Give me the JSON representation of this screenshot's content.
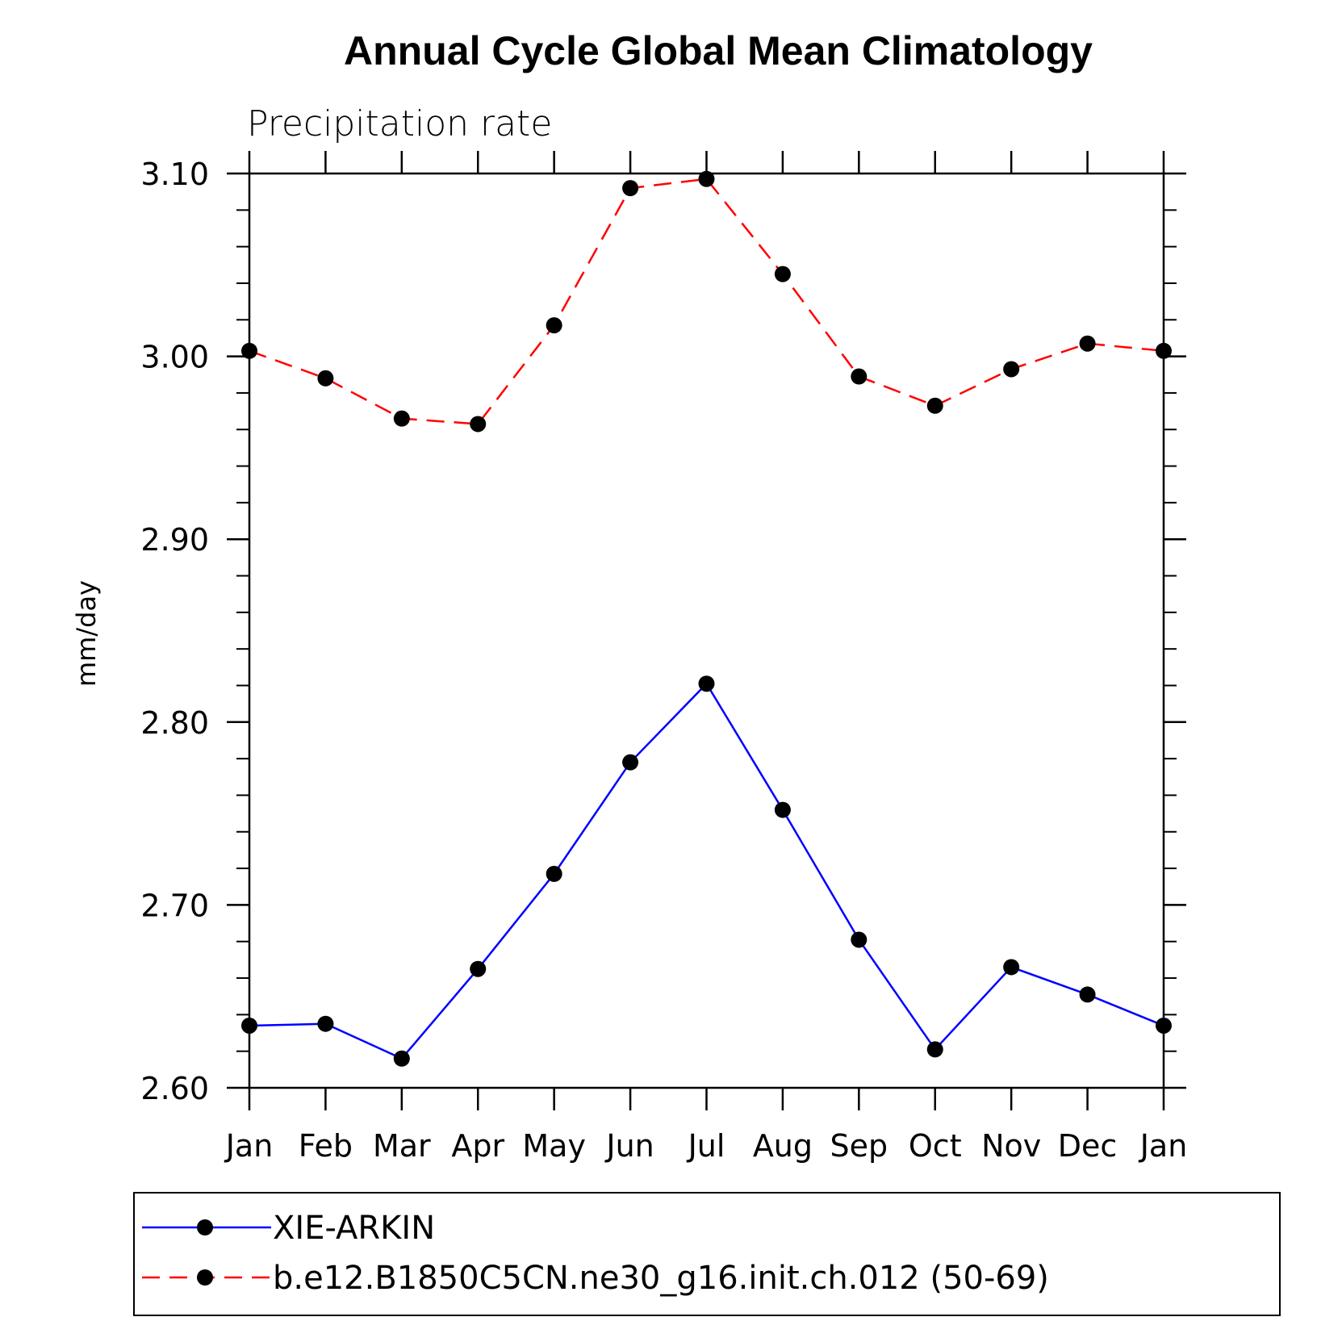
{
  "chart_data": {
    "type": "line",
    "title": "Annual Cycle Global Mean Climatology",
    "subtitle": "Precipitation rate",
    "xlabel": "",
    "ylabel": "mm/day",
    "categories": [
      "Jan",
      "Feb",
      "Mar",
      "Apr",
      "May",
      "Jun",
      "Jul",
      "Aug",
      "Sep",
      "Oct",
      "Nov",
      "Dec",
      "Jan"
    ],
    "ylim": [
      2.6,
      3.1
    ],
    "yticks": [
      "2.60",
      "2.70",
      "2.80",
      "2.90",
      "3.00",
      "3.10"
    ],
    "series": [
      {
        "name": "XIE-ARKIN",
        "color": "#0000ff",
        "dashed": false,
        "values": [
          2.634,
          2.635,
          2.616,
          2.665,
          2.717,
          2.778,
          2.821,
          2.752,
          2.681,
          2.621,
          2.666,
          2.651,
          2.634
        ]
      },
      {
        "name": "b.e12.B1850C5CN.ne30_g16.init.ch.012 (50-69)",
        "color": "#ff0000",
        "dashed": true,
        "values": [
          3.003,
          2.988,
          2.966,
          2.963,
          3.017,
          3.092,
          3.097,
          3.045,
          2.989,
          2.973,
          2.993,
          3.007,
          3.003
        ]
      }
    ],
    "legend_position": "bottom"
  }
}
